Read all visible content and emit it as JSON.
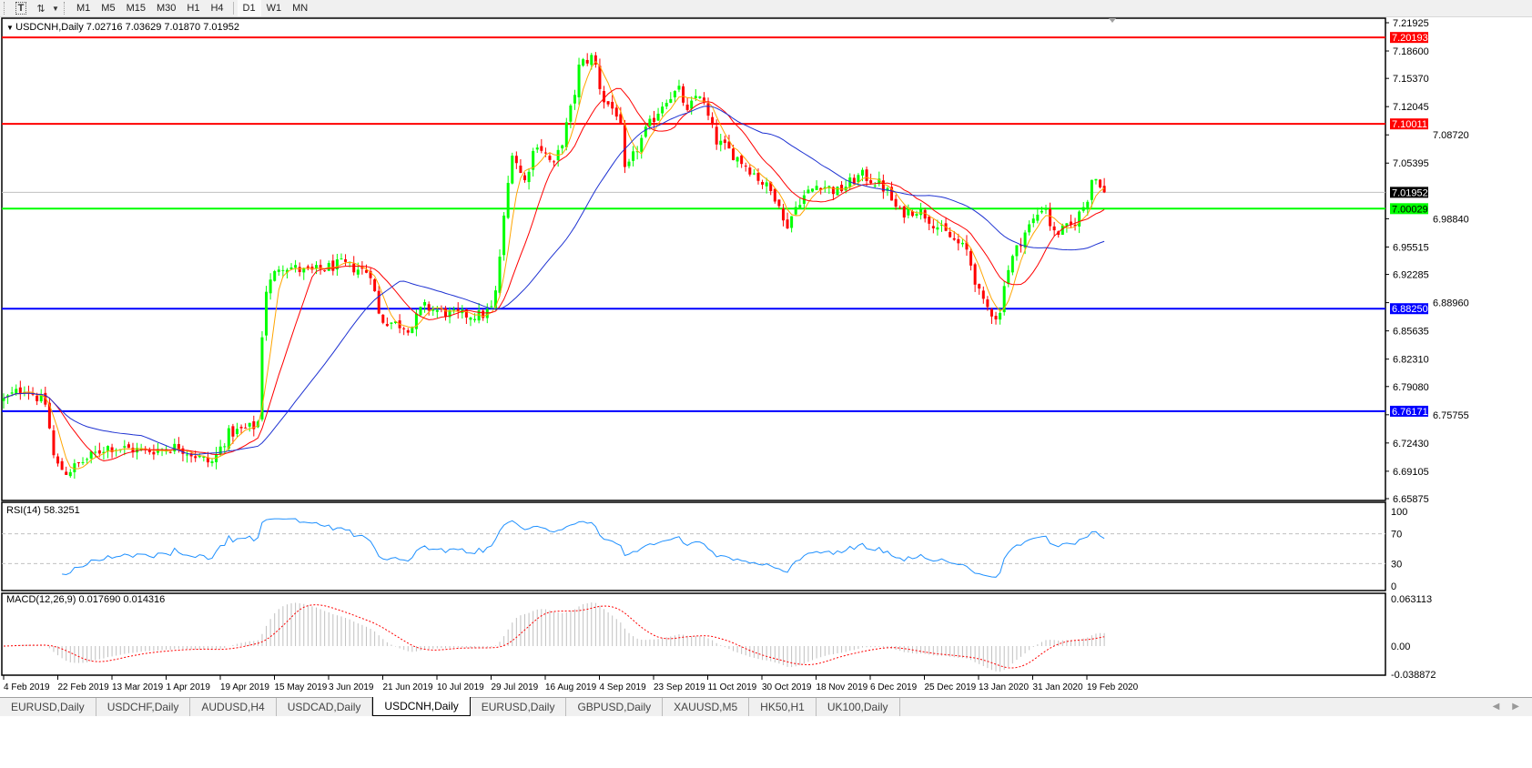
{
  "toolbar": {
    "icons": [
      "text-tool-icon",
      "arrows-tool-icon",
      "dropdown-icon"
    ],
    "timeframes": [
      "M1",
      "M5",
      "M15",
      "M30",
      "H1",
      "H4",
      "D1",
      "W1",
      "MN"
    ]
  },
  "chart_header": {
    "symbol_timeframe": "USDCNH,Daily",
    "ohlc": "7.02716 7.03629 7.01870 7.01952"
  },
  "rsi": {
    "label": "RSI(14) 58.3251",
    "ticks": [
      "100",
      "70",
      "30",
      "0"
    ]
  },
  "macd": {
    "label": "MACD(12,26,9) 0.017690 0.014316",
    "ticks": [
      "0.063113",
      "0.00",
      "-0.038872"
    ]
  },
  "tabs": [
    {
      "label": "EURUSD,Daily",
      "active": false
    },
    {
      "label": "USDCHF,Daily",
      "active": false
    },
    {
      "label": "AUDUSD,H4",
      "active": false
    },
    {
      "label": "USDCAD,Daily",
      "active": false
    },
    {
      "label": "USDCNH,Daily",
      "active": true
    },
    {
      "label": "EURUSD,Daily",
      "active": false
    },
    {
      "label": "GBPUSD,Daily",
      "active": false
    },
    {
      "label": "XAUUSD,M5",
      "active": false
    },
    {
      "label": "HK50,H1",
      "active": false
    },
    {
      "label": "UK100,Daily",
      "active": false
    }
  ],
  "chart_data": {
    "type": "candlestick",
    "symbol": "USDCNH",
    "timeframe": "Daily",
    "last_bar": {
      "open": 7.02716,
      "high": 7.03629,
      "low": 7.0187,
      "close": 7.01952
    },
    "colors": {
      "bull": "#00ff00",
      "bear": "#ff0000",
      "ma_fast": "#ffa500",
      "ma_mid": "#ff0000",
      "ma_slow": "#1e32d2",
      "rsi": "#1e90ff",
      "macd_hist": "#c0c0c0",
      "macd_signal": "#ff0000"
    },
    "y_axis": {
      "range": [
        6.65875,
        7.21925
      ],
      "ticks": [
        "7.21925",
        "7.18600",
        "7.15370",
        "7.12045",
        "7.08720",
        "7.05395",
        "6.98840",
        "6.95515",
        "6.92285",
        "6.88960",
        "6.85635",
        "6.82310",
        "6.79080",
        "6.75755",
        "6.72430",
        "6.69105",
        "6.65875"
      ]
    },
    "x_axis": {
      "labels": [
        {
          "text": "4 Feb 2019",
          "date": "2019-02-04"
        },
        {
          "text": "22 Feb 2019",
          "date": "2019-02-22"
        },
        {
          "text": "13 Mar 2019",
          "date": "2019-03-13"
        },
        {
          "text": "1 Apr 2019",
          "date": "2019-04-01"
        },
        {
          "text": "19 Apr 2019",
          "date": "2019-04-19"
        },
        {
          "text": "15 May 2019",
          "date": "2019-05-15"
        },
        {
          "text": "3 Jun 2019",
          "date": "2019-06-03"
        },
        {
          "text": "21 Jun 2019",
          "date": "2019-06-21"
        },
        {
          "text": "10 Jul 2019",
          "date": "2019-07-10"
        },
        {
          "text": "29 Jul 2019",
          "date": "2019-07-29"
        },
        {
          "text": "16 Aug 2019",
          "date": "2019-08-16"
        },
        {
          "text": "4 Sep 2019",
          "date": "2019-09-04"
        },
        {
          "text": "23 Sep 2019",
          "date": "2019-09-23"
        },
        {
          "text": "11 Oct 2019",
          "date": "2019-10-11"
        },
        {
          "text": "30 Oct 2019",
          "date": "2019-10-30"
        },
        {
          "text": "18 Nov 2019",
          "date": "2019-11-18"
        },
        {
          "text": "6 Dec 2019",
          "date": "2019-12-06"
        },
        {
          "text": "25 Dec 2019",
          "date": "2019-12-25"
        },
        {
          "text": "13 Jan 2020",
          "date": "2020-01-13"
        },
        {
          "text": "31 Jan 2020",
          "date": "2020-01-31"
        },
        {
          "text": "19 Feb 2020",
          "date": "2020-02-19"
        }
      ]
    },
    "close_keypoints": [
      [
        "2019-02-04",
        6.775
      ],
      [
        "2019-02-11",
        6.79
      ],
      [
        "2019-02-18",
        6.77
      ],
      [
        "2019-02-21",
        6.7
      ],
      [
        "2019-02-25",
        6.69
      ],
      [
        "2019-03-11",
        6.72
      ],
      [
        "2019-03-25",
        6.715
      ],
      [
        "2019-04-05",
        6.72
      ],
      [
        "2019-04-16",
        6.7
      ],
      [
        "2019-04-23",
        6.735
      ],
      [
        "2019-05-07",
        6.745
      ],
      [
        "2019-05-10",
        6.9
      ],
      [
        "2019-05-17",
        6.935
      ],
      [
        "2019-05-27",
        6.925
      ],
      [
        "2019-06-07",
        6.935
      ],
      [
        "2019-06-17",
        6.925
      ],
      [
        "2019-06-20",
        6.87
      ],
      [
        "2019-07-01",
        6.86
      ],
      [
        "2019-07-05",
        6.885
      ],
      [
        "2019-07-16",
        6.875
      ],
      [
        "2019-07-26",
        6.875
      ],
      [
        "2019-07-30",
        6.885
      ],
      [
        "2019-08-02",
        6.98
      ],
      [
        "2019-08-05",
        7.07
      ],
      [
        "2019-08-09",
        7.03
      ],
      [
        "2019-08-13",
        7.08
      ],
      [
        "2019-08-19",
        7.05
      ],
      [
        "2019-08-22",
        7.08
      ],
      [
        "2019-08-26",
        7.13
      ],
      [
        "2019-08-28",
        7.17
      ],
      [
        "2019-09-02",
        7.18
      ],
      [
        "2019-09-05",
        7.13
      ],
      [
        "2019-09-11",
        7.11
      ],
      [
        "2019-09-13",
        7.04
      ],
      [
        "2019-09-17",
        7.07
      ],
      [
        "2019-09-20",
        7.09
      ],
      [
        "2019-09-27",
        7.13
      ],
      [
        "2019-10-02",
        7.14
      ],
      [
        "2019-10-04",
        7.11
      ],
      [
        "2019-10-08",
        7.14
      ],
      [
        "2019-10-14",
        7.08
      ],
      [
        "2019-10-18",
        7.07
      ],
      [
        "2019-10-25",
        7.05
      ],
      [
        "2019-11-05",
        7.01
      ],
      [
        "2019-11-07",
        6.975
      ],
      [
        "2019-11-12",
        7.01
      ],
      [
        "2019-11-19",
        7.03
      ],
      [
        "2019-11-25",
        7.02
      ],
      [
        "2019-12-03",
        7.04
      ],
      [
        "2019-12-09",
        7.03
      ],
      [
        "2019-12-12",
        7.02
      ],
      [
        "2019-12-16",
        6.995
      ],
      [
        "2019-12-23",
        7.0
      ],
      [
        "2019-12-31",
        6.975
      ],
      [
        "2020-01-09",
        6.95
      ],
      [
        "2020-01-14",
        6.89
      ],
      [
        "2020-01-20",
        6.87
      ],
      [
        "2020-01-21",
        6.91
      ],
      [
        "2020-01-24",
        6.94
      ],
      [
        "2020-01-28",
        6.97
      ],
      [
        "2020-02-03",
        7.0
      ],
      [
        "2020-02-04",
        7.01
      ],
      [
        "2020-02-07",
        6.97
      ],
      [
        "2020-02-14",
        6.98
      ],
      [
        "2020-02-19",
        7.01
      ],
      [
        "2020-02-21",
        7.04
      ],
      [
        "2020-02-24",
        7.03
      ],
      [
        "2020-02-25",
        7.01952
      ]
    ],
    "levels": [
      {
        "price": 7.20193,
        "label": "7.20193",
        "color": "#ff0000",
        "text_color": "#ffffff"
      },
      {
        "price": 7.10011,
        "label": "7.10011",
        "color": "#ff0000",
        "text_color": "#ffffff"
      },
      {
        "price": 7.01952,
        "label": "7.01952",
        "color": "#000000",
        "text_color": "#ffffff",
        "line_color": "#c0c0c0"
      },
      {
        "price": 7.00029,
        "label": "7.00029",
        "color": "#00ff00",
        "text_color": "#000000"
      },
      {
        "price": 6.8825,
        "label": "6.88250",
        "color": "#0000ff",
        "text_color": "#ffffff"
      },
      {
        "price": 6.76171,
        "label": "6.76171",
        "color": "#0000ff",
        "text_color": "#ffffff"
      }
    ],
    "rsi_range": [
      0,
      100
    ],
    "rsi_levels": [
      70,
      30
    ],
    "macd_range": [
      -0.038872,
      0.063113
    ]
  }
}
